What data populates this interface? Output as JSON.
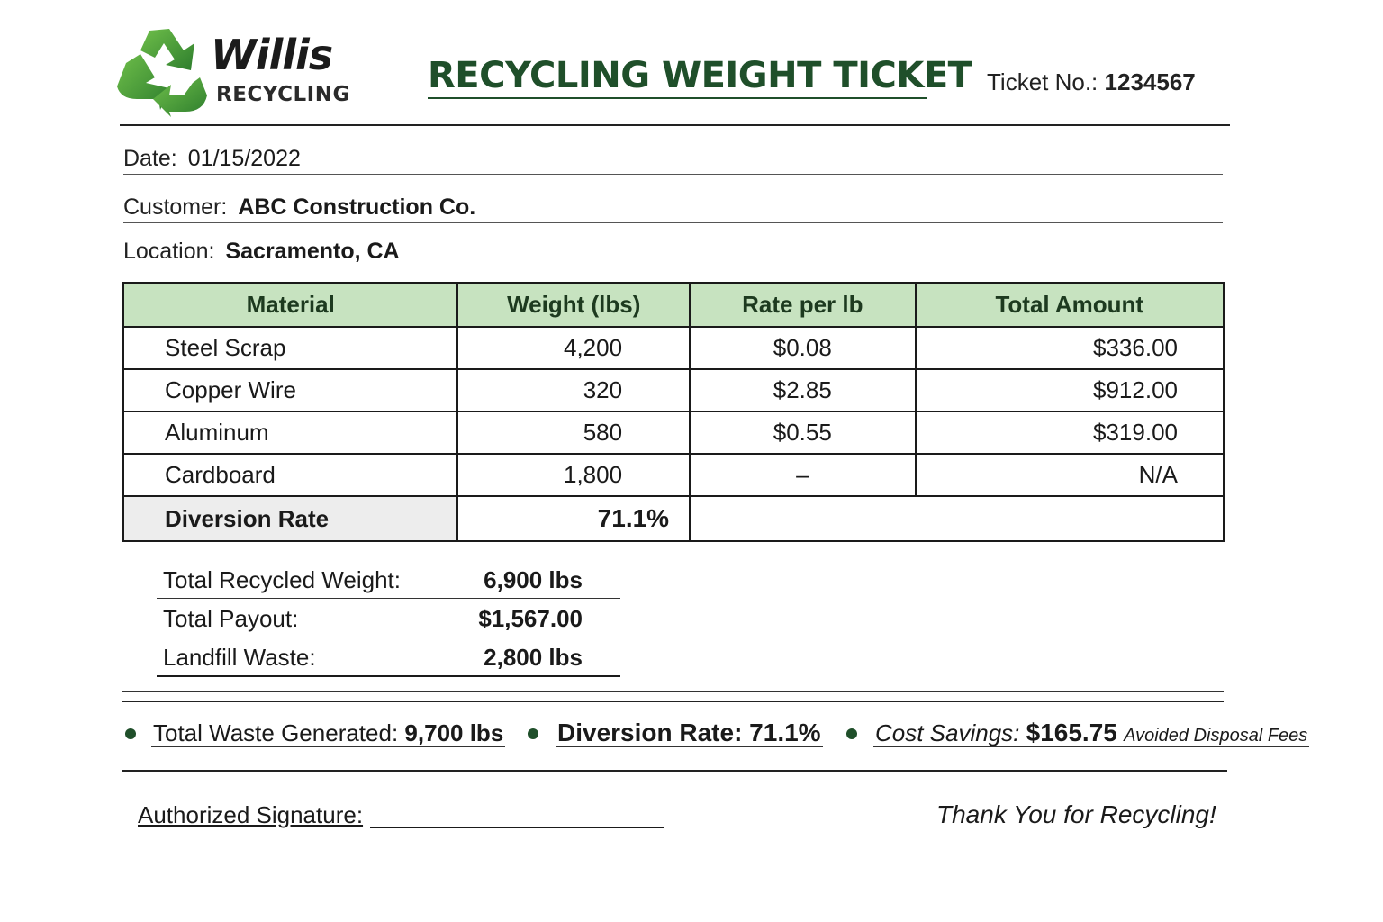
{
  "header": {
    "brand_name": "Willis",
    "brand_sub": "RECYCLING",
    "title": "RECYCLING WEIGHT TICKET",
    "ticket_label": "Ticket No.:",
    "ticket_number": "1234567",
    "brand_color": "#3a8a3a"
  },
  "info": {
    "date_label": "Date:",
    "date_value": "01/15/2022",
    "customer_label": "Customer:",
    "customer_value": "ABC Construction Co.",
    "location_label": "Location:",
    "location_value": "Sacramento, CA"
  },
  "table": {
    "headers": [
      "Material",
      "Weight (lbs)",
      "Rate per lb",
      "Total Amount"
    ],
    "rows": [
      {
        "material": "Steel Scrap",
        "weight": "4,200",
        "rate": "$0.08",
        "total": "$336.00"
      },
      {
        "material": "Copper Wire",
        "weight": "320",
        "rate": "$2.85",
        "total": "$912.00"
      },
      {
        "material": "Aluminum",
        "weight": "580",
        "rate": "$0.55",
        "total": "$319.00"
      },
      {
        "material": "Cardboard",
        "weight": "1,800",
        "rate": "–",
        "total": "N/A"
      }
    ],
    "diversion_label": "Diversion Rate",
    "diversion_value": "71.1%",
    "header_bg": "#c7e3c0"
  },
  "totals": [
    {
      "label": "Total Recycled Weight:",
      "value": "6,900 lbs"
    },
    {
      "label": "Total Payout:",
      "value": "$1,567.00"
    },
    {
      "label": "Landfill Waste:",
      "value": "2,800 lbs"
    }
  ],
  "summary": {
    "waste_label": "Total Waste Generated:",
    "waste_value": "9,700 lbs",
    "diversion_text": "Diversion Rate: 71.1%",
    "savings_label": "Cost Savings:",
    "savings_value": "$165.75",
    "savings_note": "Avoided Disposal Fees"
  },
  "footer": {
    "signature_label": "Authorized Signature:",
    "thanks": "Thank You for Recycling!"
  }
}
